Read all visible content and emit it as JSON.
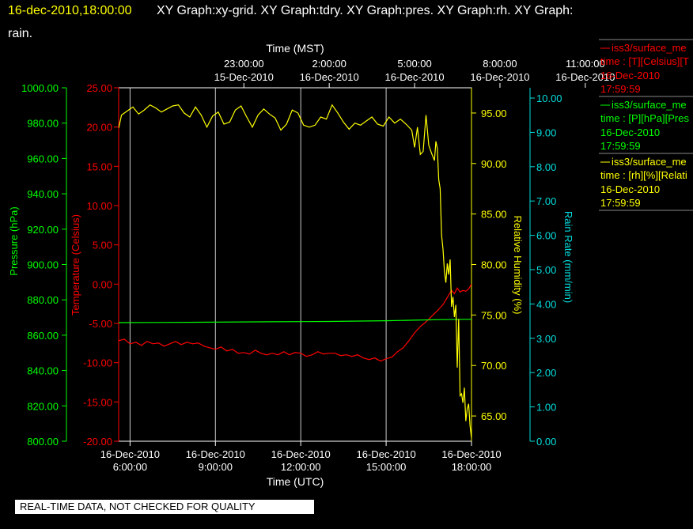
{
  "header": {
    "timestamp": "16-dec-2010,18:00:00",
    "title_line1": "XY Graph:xy-grid.  XY Graph:tdry.  XY Graph:pres.  XY Graph:rh.  XY Graph:",
    "title_line2": "rain."
  },
  "footer": {
    "quality_notice": "REAL-TIME DATA, NOT CHECKED FOR QUALITY"
  },
  "colors": {
    "background": "#000000",
    "temperature": "#ff0000",
    "pressure": "#00ff00",
    "humidity": "#ffff00",
    "rain": "#00dddd",
    "grid": "#cccccc",
    "frame": "#ffffff"
  },
  "legend": [
    {
      "line1": "iss3/surface_me",
      "line2": "time : [T][Celsius][T",
      "line3": "16-Dec-2010",
      "line4": "17:59:59",
      "color": "#ff0000"
    },
    {
      "line1": "iss3/surface_me",
      "line2": "time : [P][hPa][Pres",
      "line3": "16-Dec-2010",
      "line4": "17:59:59",
      "color": "#00ff00"
    },
    {
      "line1": "iss3/surface_me",
      "line2": "time : [rh][%][Relati",
      "line3": "16-Dec-2010",
      "line4": "17:59:59",
      "color": "#ffff00"
    }
  ],
  "chart_data": {
    "type": "line",
    "title": "",
    "top_axis": {
      "label": "Time (MST)",
      "ticks": [
        {
          "x": 3,
          "time": "23:00:00",
          "date": "15-Dec-2010"
        },
        {
          "x": 6,
          "time": "2:00:00",
          "date": "16-Dec-2010"
        },
        {
          "x": 9,
          "time": "5:00:00",
          "date": "16-Dec-2010"
        },
        {
          "x": 12,
          "time": "8:00:00",
          "date": "16-Dec-2010"
        },
        {
          "x": 15,
          "time": "11:00:00",
          "date": "16-Dec-2010"
        }
      ]
    },
    "bottom_axis": {
      "label": "Time (UTC)",
      "range_hours": [
        5.6,
        18.0
      ],
      "ticks": [
        {
          "x": 6,
          "date": "16-Dec-2010",
          "time": "6:00:00"
        },
        {
          "x": 9,
          "date": "16-Dec-2010",
          "time": "9:00:00"
        },
        {
          "x": 12,
          "date": "16-Dec-2010",
          "time": "12:00:00"
        },
        {
          "x": 15,
          "date": "16-Dec-2010",
          "time": "15:00:00"
        },
        {
          "x": 18,
          "date": "16-Dec-2010",
          "time": "18:00:00"
        }
      ],
      "grid": true
    },
    "y_axes": [
      {
        "id": "pres",
        "label": "Pressure (hPa)",
        "range": [
          800,
          1000
        ],
        "step": 20,
        "ticks": [
          "800.00",
          "820.00",
          "840.00",
          "860.00",
          "880.00",
          "900.00",
          "920.00",
          "940.00",
          "960.00",
          "980.00",
          "1000.00"
        ],
        "color": "#00ff00"
      },
      {
        "id": "tdry",
        "label": "Temperature (Celsius)",
        "range": [
          -20,
          25
        ],
        "step": 5,
        "ticks": [
          "-20.00",
          "-15.00",
          "-10.00",
          "-5.00",
          "0.00",
          "5.00",
          "10.00",
          "15.00",
          "20.00",
          "25.00"
        ],
        "color": "#ff0000"
      },
      {
        "id": "rh",
        "label": "Relative Humidity (%)",
        "range": [
          62.5,
          97.5
        ],
        "step": 5,
        "ticks": [
          "65.00",
          "70.00",
          "75.00",
          "80.00",
          "85.00",
          "90.00",
          "95.00"
        ],
        "color": "#ffff00"
      },
      {
        "id": "rain",
        "label": "Rain Rate (mm/min)",
        "range": [
          0,
          10.3
        ],
        "step": 1,
        "ticks": [
          "0.00",
          "1.00",
          "2.00",
          "3.00",
          "4.00",
          "5.00",
          "6.00",
          "7.00",
          "8.00",
          "9.00",
          "10.00"
        ],
        "color": "#00dddd"
      }
    ],
    "series": [
      {
        "name": "tdry",
        "axis": "tdry",
        "color": "#ff0000",
        "x": [
          5.6,
          5.8,
          6.0,
          6.2,
          6.4,
          6.6,
          6.8,
          7.0,
          7.2,
          7.4,
          7.6,
          7.8,
          8.0,
          8.2,
          8.4,
          8.6,
          8.8,
          9.0,
          9.2,
          9.4,
          9.6,
          9.8,
          10.0,
          10.2,
          10.4,
          10.6,
          10.8,
          11.0,
          11.2,
          11.4,
          11.6,
          11.8,
          12.0,
          12.2,
          12.4,
          12.6,
          12.8,
          13.0,
          13.2,
          13.4,
          13.6,
          13.8,
          14.0,
          14.2,
          14.4,
          14.6,
          14.8,
          15.0,
          15.2,
          15.4,
          15.6,
          15.8,
          16.0,
          16.2,
          16.4,
          16.6,
          16.8,
          17.0,
          17.2,
          17.3,
          17.4,
          17.5,
          17.6,
          17.7,
          17.8,
          17.9,
          18.0
        ],
        "y": [
          -7.2,
          -7.0,
          -7.6,
          -7.4,
          -7.8,
          -7.3,
          -7.6,
          -7.5,
          -7.9,
          -7.6,
          -7.3,
          -7.7,
          -7.4,
          -7.6,
          -7.5,
          -7.9,
          -8.1,
          -8.3,
          -8.0,
          -8.5,
          -8.3,
          -8.8,
          -8.7,
          -8.9,
          -8.4,
          -8.8,
          -9.0,
          -8.8,
          -9.0,
          -8.6,
          -9.0,
          -8.7,
          -8.8,
          -9.2,
          -9.0,
          -8.6,
          -8.9,
          -8.8,
          -8.8,
          -9.1,
          -9.0,
          -9.2,
          -9.0,
          -9.4,
          -9.6,
          -9.4,
          -9.8,
          -9.5,
          -9.3,
          -8.6,
          -8.1,
          -7.2,
          -6.2,
          -5.4,
          -4.8,
          -4.1,
          -3.4,
          -2.6,
          -1.4,
          -0.8,
          -1.2,
          -0.5,
          -1.0,
          -0.8,
          -0.9,
          -0.6,
          0.0
        ]
      },
      {
        "name": "pres",
        "axis": "pres",
        "color": "#00ff00",
        "x": [
          5.6,
          7.0,
          9.0,
          11.0,
          13.0,
          15.0,
          16.0,
          17.0,
          18.0
        ],
        "y": [
          867.1,
          867.2,
          867.4,
          867.6,
          867.8,
          868.2,
          868.5,
          868.8,
          869.0
        ]
      },
      {
        "name": "rh",
        "axis": "rh",
        "color": "#ffff00",
        "x": [
          5.6,
          5.7,
          5.9,
          6.1,
          6.3,
          6.5,
          6.7,
          6.9,
          7.1,
          7.3,
          7.5,
          7.7,
          7.9,
          8.1,
          8.3,
          8.5,
          8.7,
          8.9,
          9.1,
          9.3,
          9.5,
          9.7,
          9.9,
          10.1,
          10.3,
          10.5,
          10.7,
          10.9,
          11.1,
          11.3,
          11.5,
          11.7,
          11.9,
          12.1,
          12.3,
          12.5,
          12.7,
          12.9,
          13.1,
          13.3,
          13.5,
          13.7,
          13.9,
          14.1,
          14.3,
          14.5,
          14.7,
          14.9,
          15.1,
          15.3,
          15.5,
          15.7,
          15.9,
          16.0,
          16.1,
          16.2,
          16.3,
          16.4,
          16.5,
          16.6,
          16.7,
          16.75,
          16.8,
          16.85,
          16.9,
          16.95,
          17.0,
          17.05,
          17.1,
          17.15,
          17.2,
          17.25,
          17.3,
          17.35,
          17.4,
          17.45,
          17.5,
          17.55,
          17.6,
          17.65,
          17.7,
          17.75,
          17.8,
          17.85,
          17.9,
          17.95,
          18.0
        ],
        "y": [
          93.5,
          94.8,
          95.2,
          95.6,
          94.9,
          95.3,
          95.8,
          95.5,
          95.1,
          95.4,
          95.7,
          95.8,
          95.0,
          94.6,
          95.6,
          94.8,
          93.6,
          94.7,
          95.1,
          93.9,
          94.1,
          95.3,
          95.7,
          94.6,
          93.6,
          94.8,
          95.4,
          94.9,
          94.5,
          93.3,
          93.9,
          95.3,
          95.0,
          93.8,
          93.6,
          93.8,
          94.6,
          94.4,
          95.8,
          95.0,
          94.1,
          93.4,
          94.0,
          93.8,
          94.2,
          94.6,
          93.9,
          93.7,
          94.6,
          94.0,
          94.4,
          93.9,
          93.3,
          91.6,
          93.6,
          90.9,
          91.2,
          94.8,
          91.8,
          91.0,
          90.3,
          92.2,
          91.5,
          88.4,
          87.5,
          82.9,
          81.5,
          79.3,
          78.2,
          80.1,
          79.0,
          80.5,
          75.8,
          76.8,
          74.8,
          76.0,
          69.8,
          74.6,
          67.0,
          67.2,
          66.3,
          67.8,
          64.5,
          65.7,
          66.2,
          64.0,
          62.8
        ]
      },
      {
        "name": "rain",
        "axis": "rain",
        "color": "#00dddd",
        "x": [],
        "y": []
      }
    ],
    "legend_position": "right"
  }
}
